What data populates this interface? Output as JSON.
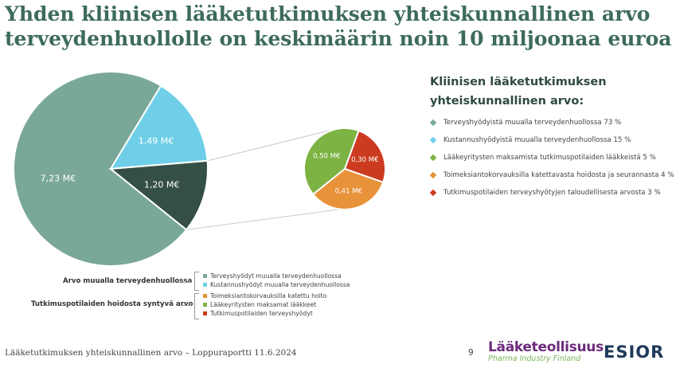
{
  "title": {
    "line1": "Yhden kliinisen lääketutkimuksen yhteiskunnallinen arvo",
    "line2": "terveydenhuollolle on keskimäärin noin 10 miljoonaa euroa"
  },
  "chart_data": {
    "type": "pie",
    "unit": "M€",
    "main_pie": {
      "slices": [
        {
          "label": "7,23 M€",
          "value": 7.23,
          "color": "#7aa898",
          "text_color": "#ffffff"
        },
        {
          "label": "1,49 M€",
          "value": 1.49,
          "color": "#6fcfe8",
          "text_color": "#ffffff"
        },
        {
          "label": "1,20 M€",
          "value": 1.2,
          "color": "#344f45",
          "text_color": "#ffffff"
        }
      ]
    },
    "detail_pie": {
      "slices": [
        {
          "label": "0,30 M€",
          "value": 0.3,
          "color": "#cc3a1f",
          "text_color": "#ffffff"
        },
        {
          "label": "0,41 M€",
          "value": 0.41,
          "color": "#e8923a",
          "text_color": "#ffffff"
        },
        {
          "label": "0,50 M€",
          "value": 0.5,
          "color": "#7cb342",
          "text_color": "#ffffff"
        }
      ]
    }
  },
  "legend": {
    "title": "Kliinisen lääketutkimuksen yhteiskunnallinen arvo:",
    "items": [
      {
        "label": "Terveyshyödyistä muualla terveydenhuollossa 73 %",
        "color": "#7aa898"
      },
      {
        "label": "Kustannushyödyistä muualla terveydenhuollossa 15 %",
        "color": "#6fcfe8"
      },
      {
        "label": "Lääkeyritysten maksamista tutkimuspotilaiden lääkkeistä 5 %",
        "color": "#7cb342"
      },
      {
        "label": "Toimeksiantokorvauksilla katettavasta hoidosta ja seurannasta 4 %",
        "color": "#e8923a"
      },
      {
        "label": "Tutkimuspotilaiden terveyshyötyjen taloudellisesta arvosta 3 %",
        "color": "#cc3a1f"
      }
    ]
  },
  "groups": {
    "group1": {
      "label": "Arvo muualla terveydenhuollossa",
      "items": [
        {
          "label": "Terveyshyödyt muualla terveydenhuollossa",
          "color": "#7aa898"
        },
        {
          "label": "Kustannushyödyt muualla terveydenhuollossa",
          "color": "#6fcfe8"
        }
      ]
    },
    "group2": {
      "label": "Tutkimuspotilaiden  hoidosta syntyvä arvo",
      "items": [
        {
          "label": "Toimeksiantokorvauksilla katettu hoito",
          "color": "#e8923a"
        },
        {
          "label": "Lääkeyritysten maksamat lääkkeet",
          "color": "#7cb342"
        },
        {
          "label": "Tutkimuspotilaiden terveyshyödyt",
          "color": "#cc3a1f"
        }
      ]
    }
  },
  "footer": {
    "text": "Lääketutkimuksen yhteiskunnallinen arvo – Loppuraportti 11.6.2024",
    "page": "9"
  },
  "logos": {
    "laaketeollisuus": "Lääketeollisuus",
    "laaketeollisuus_sub": "Pharma Industry Finland",
    "esior": "ESIOR"
  }
}
